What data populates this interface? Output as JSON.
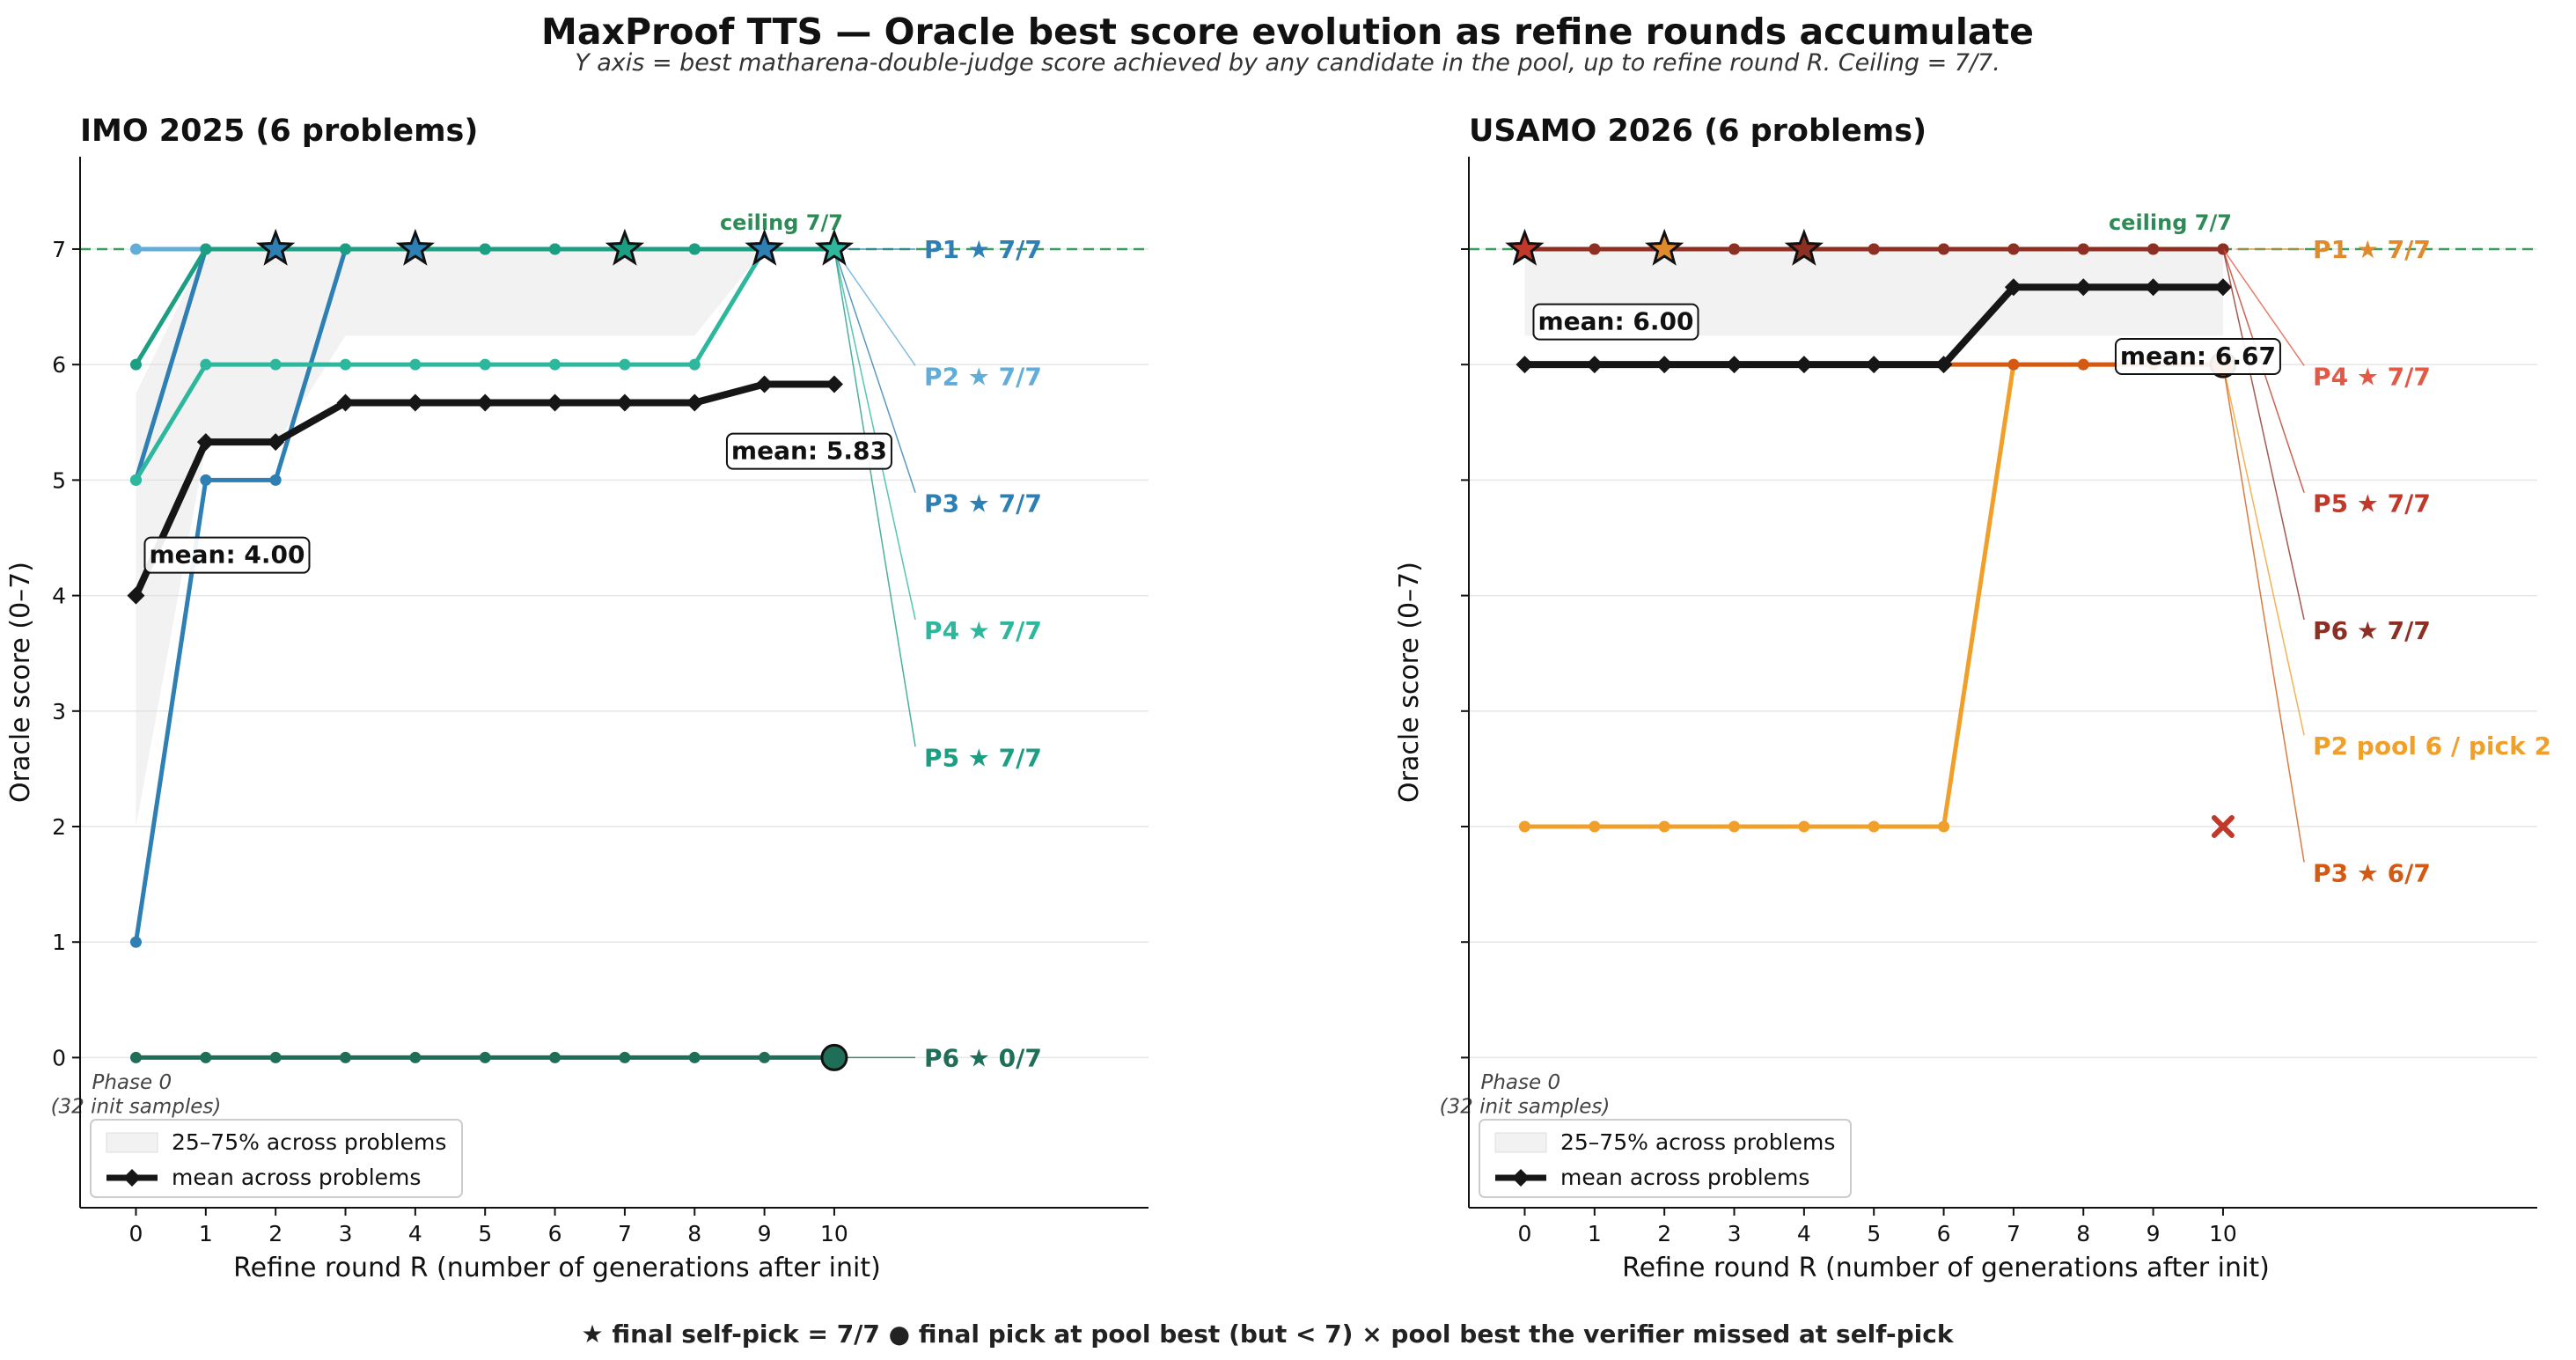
{
  "figure": {
    "title": "MaxProof TTS — Oracle best score evolution as refine rounds accumulate",
    "subtitle": "Y axis = best matharena-double-judge score achieved by any candidate in the pool, up to refine round R.   Ceiling = 7/7.",
    "footer": "★ final self-pick = 7/7    ●  final pick at pool best (but < 7)    ×  pool best the verifier missed at self-pick"
  },
  "chart_data": [
    {
      "type": "line",
      "title": "IMO 2025  (6 problems)",
      "xlabel": "Refine round R   (number of generations after init)",
      "ylabel": "Oracle score (0–7)",
      "xlim": [
        -0.8,
        14.5
      ],
      "ylim": [
        -1.3,
        7.8
      ],
      "x": [
        0,
        1,
        2,
        3,
        4,
        5,
        6,
        7,
        8,
        9,
        10
      ],
      "xticks": [
        "0",
        "1",
        "2",
        "3",
        "4",
        "5",
        "6",
        "7",
        "8",
        "9",
        "10"
      ],
      "yticks": [
        "0",
        "1",
        "2",
        "3",
        "4",
        "5",
        "6",
        "7"
      ],
      "ceiling": 7,
      "ceiling_label": "ceiling 7/7",
      "phase_label": [
        "Phase 0",
        "(32 init samples)"
      ],
      "series": [
        {
          "name": "P1",
          "color": "#2e7fb3",
          "values": [
            5,
            7,
            7,
            7,
            7,
            7,
            7,
            7,
            7,
            7,
            7
          ],
          "stars": [
            2,
            4,
            9
          ],
          "final": "star",
          "label_text": "★ 7/7",
          "label_y": 7
        },
        {
          "name": "P2",
          "color": "#62acd8",
          "values": [
            7,
            7,
            7,
            7,
            7,
            7,
            7,
            7,
            7,
            7,
            7
          ],
          "stars": [],
          "final": "none",
          "label_text": "★ 7/7",
          "label_y": 5.9
        },
        {
          "name": "P3",
          "color": "#2e7fb3",
          "values": [
            1,
            5,
            5,
            7,
            7,
            7,
            7,
            7,
            7,
            7,
            7
          ],
          "stars": [],
          "final": "none",
          "label_text": "★ 7/7",
          "label_y": 4.8
        },
        {
          "name": "P4",
          "color": "#2db89e",
          "values": [
            5,
            6,
            6,
            6,
            6,
            6,
            6,
            6,
            6,
            7,
            7
          ],
          "stars": [
            10
          ],
          "final": "star",
          "label_text": "★ 7/7",
          "label_y": 3.7
        },
        {
          "name": "P5",
          "color": "#1c9e82",
          "values": [
            6,
            7,
            7,
            7,
            7,
            7,
            7,
            7,
            7,
            7,
            7
          ],
          "stars": [
            7
          ],
          "final": "star",
          "label_text": "★ 7/7",
          "label_y": 2.6
        },
        {
          "name": "P6",
          "color": "#1f6e58",
          "values": [
            0,
            0,
            0,
            0,
            0,
            0,
            0,
            0,
            0,
            0,
            0
          ],
          "stars": [],
          "final": "dot",
          "label_text": "★ 0/7",
          "label_y": 0
        }
      ],
      "mean": {
        "values": [
          4.0,
          5.33,
          5.33,
          5.67,
          5.67,
          5.67,
          5.67,
          5.67,
          5.67,
          5.83,
          5.83
        ],
        "start_label": "mean: 4.00",
        "end_label": "mean: 5.83"
      },
      "band": {
        "lower": [
          2.0,
          5.3,
          5.3,
          6.25,
          6.25,
          6.25,
          6.25,
          6.25,
          6.25,
          7.0,
          7.0
        ],
        "upper": [
          5.75,
          7,
          7,
          7,
          7,
          7,
          7,
          7,
          7,
          7,
          7
        ]
      },
      "crosses": [],
      "legend": {
        "position": "lower-left",
        "band_label": "25–75% across problems",
        "mean_label": "mean across problems"
      }
    },
    {
      "type": "line",
      "title": "USAMO 2026  (6 problems)",
      "xlabel": "Refine round R   (number of generations after init)",
      "ylabel": "Oracle score (0–7)",
      "xlim": [
        -0.8,
        14.5
      ],
      "ylim": [
        -1.3,
        7.8
      ],
      "x": [
        0,
        1,
        2,
        3,
        4,
        5,
        6,
        7,
        8,
        9,
        10
      ],
      "xticks": [
        "0",
        "1",
        "2",
        "3",
        "4",
        "5",
        "6",
        "7",
        "8",
        "9",
        "10"
      ],
      "yticks": [
        "0",
        "1",
        "2",
        "3",
        "4",
        "5",
        "6",
        "7"
      ],
      "ceiling": 7,
      "ceiling_label": "ceiling 7/7",
      "phase_label": [
        "Phase 0",
        "(32 init samples)"
      ],
      "series": [
        {
          "name": "P1",
          "color": "#e08a2e",
          "values": [
            7,
            7,
            7,
            7,
            7,
            7,
            7,
            7,
            7,
            7,
            7
          ],
          "stars": [
            2
          ],
          "final": "none",
          "label_text": "★ 7/7",
          "label_y": 7
        },
        {
          "name": "P4",
          "color": "#e25a46",
          "values": [
            7,
            7,
            7,
            7,
            7,
            7,
            7,
            7,
            7,
            7,
            7
          ],
          "stars": [],
          "final": "none",
          "label_text": "★ 7/7",
          "label_y": 5.9
        },
        {
          "name": "P5",
          "color": "#c0392b",
          "values": [
            7,
            7,
            7,
            7,
            7,
            7,
            7,
            7,
            7,
            7,
            7
          ],
          "stars": [
            0
          ],
          "final": "none",
          "label_text": "★ 7/7",
          "label_y": 4.8
        },
        {
          "name": "P6",
          "color": "#8e2f24",
          "values": [
            7,
            7,
            7,
            7,
            7,
            7,
            7,
            7,
            7,
            7,
            7
          ],
          "stars": [
            4
          ],
          "final": "none",
          "label_text": "★ 7/7",
          "label_y": 3.7
        },
        {
          "name": "P2",
          "color": "#f0a02a",
          "values": [
            2,
            2,
            2,
            2,
            2,
            2,
            2,
            6,
            6,
            6,
            6
          ],
          "stars": [],
          "final": "none",
          "label_text": "pool 6 / pick 2",
          "label_y": 2.7
        },
        {
          "name": "P3",
          "color": "#d35a12",
          "values": [
            6,
            6,
            6,
            6,
            6,
            6,
            6,
            6,
            6,
            6,
            6
          ],
          "stars": [],
          "final": "dot",
          "label_text": "★ 6/7",
          "label_y": 1.6
        }
      ],
      "mean": {
        "values": [
          6.0,
          6.0,
          6.0,
          6.0,
          6.0,
          6.0,
          6.0,
          6.67,
          6.67,
          6.67,
          6.67
        ],
        "start_label": "mean: 6.00",
        "end_label": "mean: 6.67"
      },
      "band": {
        "lower": [
          6.25,
          6.25,
          6.25,
          6.25,
          6.25,
          6.25,
          6.25,
          6.25,
          6.25,
          6.25,
          6.25
        ],
        "upper": [
          7,
          7,
          7,
          7,
          7,
          7,
          7,
          7,
          7,
          7,
          7
        ]
      },
      "crosses": [
        {
          "x": 10,
          "y": 2,
          "color": "#c0392b"
        }
      ],
      "legend": {
        "position": "lower-left",
        "band_label": "25–75% across problems",
        "mean_label": "mean across problems"
      }
    }
  ]
}
